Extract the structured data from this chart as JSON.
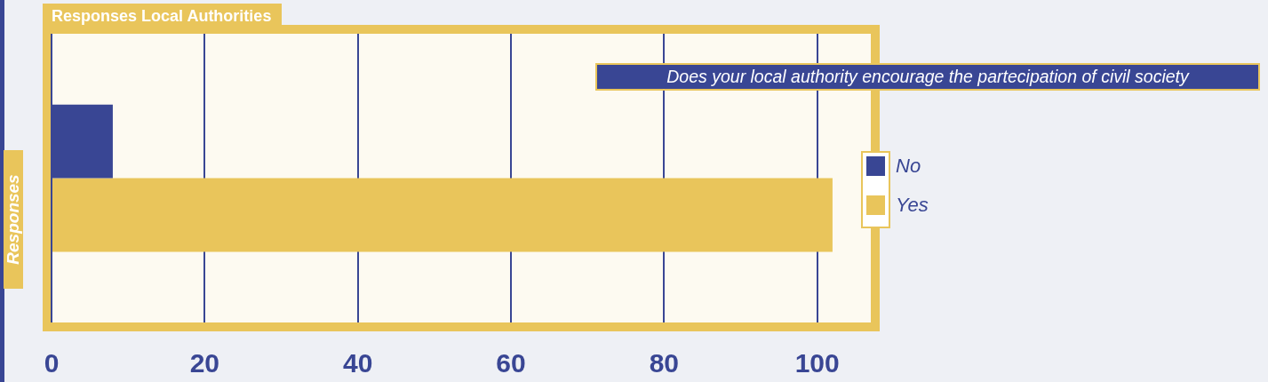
{
  "chart_data": {
    "type": "bar",
    "orientation": "horizontal",
    "title": "Responses Local Authorities",
    "subtitle": "Does your local authority encourage the partecipation of civil society",
    "ylabel": "Responses",
    "categories": [
      null
    ],
    "series": [
      {
        "name": "No",
        "color": "#394694",
        "values": [
          8
        ]
      },
      {
        "name": "Yes",
        "color": "#e9c55b",
        "values": [
          102
        ]
      }
    ],
    "xlim": [
      0,
      107
    ],
    "xticks": [
      0,
      20,
      40,
      60,
      80,
      100
    ],
    "grid": "x",
    "legend": "right"
  }
}
